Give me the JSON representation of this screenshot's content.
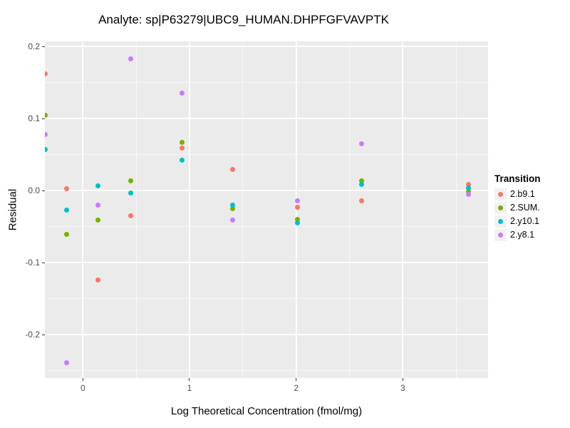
{
  "chart_data": {
    "type": "scatter",
    "title": "Analyte: sp|P63279|UBC9_HUMAN.DHPFGFVAVPTK",
    "xlabel": "Log Theoretical Concentration (fmol/mg)",
    "ylabel": "Residual",
    "x_range": [
      -0.356,
      3.799
    ],
    "y_range": [
      -0.26,
      0.2074
    ],
    "x_ticks": [
      0,
      1,
      2,
      3
    ],
    "x_tick_labels": [
      "0",
      "1",
      "2",
      "3"
    ],
    "x_minor_ticks": [
      0.5,
      1.5,
      2.5,
      3.5
    ],
    "y_ticks": [
      0.2,
      0.1,
      0.0,
      -0.1,
      -0.2
    ],
    "y_tick_labels": [
      "0.2",
      "0.1",
      "0.0",
      "-0.1",
      "-0.2"
    ],
    "y_minor_ticks": [
      0.15,
      0.05,
      -0.05,
      -0.15,
      -0.25
    ],
    "grid": true,
    "panel_background": "#EBEBEB",
    "legend_position": "right",
    "legend_title": "Transition",
    "series": [
      {
        "name": "2.b9.1",
        "color": "#F8766D",
        "points": [
          [
            -0.354,
            0.162
          ],
          [
            -0.149,
            0.003
          ],
          [
            0.143,
            -0.124
          ],
          [
            0.452,
            -0.035
          ],
          [
            0.93,
            0.059
          ],
          [
            1.405,
            0.03
          ],
          [
            2.011,
            -0.023
          ],
          [
            2.615,
            -0.014
          ],
          [
            3.617,
            0.009
          ]
        ]
      },
      {
        "name": "2.SUM.",
        "color": "#7CAE00",
        "points": [
          [
            -0.354,
            0.105
          ],
          [
            -0.149,
            -0.06
          ],
          [
            0.143,
            -0.041
          ],
          [
            0.452,
            0.014
          ],
          [
            0.93,
            0.067
          ],
          [
            1.405,
            -0.025
          ],
          [
            2.011,
            -0.04
          ],
          [
            2.615,
            0.014
          ],
          [
            3.617,
            -0.001
          ]
        ]
      },
      {
        "name": "2.y10.1",
        "color": "#00BFC4",
        "points": [
          [
            -0.354,
            0.057
          ],
          [
            -0.149,
            -0.027
          ],
          [
            0.143,
            0.007
          ],
          [
            0.452,
            -0.003
          ],
          [
            0.93,
            0.043
          ],
          [
            1.405,
            -0.02
          ],
          [
            2.011,
            -0.045
          ],
          [
            2.615,
            0.009
          ],
          [
            3.617,
            0.004
          ]
        ]
      },
      {
        "name": "2.y8.1",
        "color": "#C77CFF",
        "points": [
          [
            -0.354,
            0.078
          ],
          [
            -0.149,
            -0.239
          ],
          [
            0.143,
            -0.02
          ],
          [
            0.452,
            0.183
          ],
          [
            0.93,
            0.136
          ],
          [
            1.405,
            -0.041
          ],
          [
            2.011,
            -0.014
          ],
          [
            2.615,
            0.065
          ],
          [
            3.617,
            -0.005
          ]
        ]
      }
    ]
  }
}
